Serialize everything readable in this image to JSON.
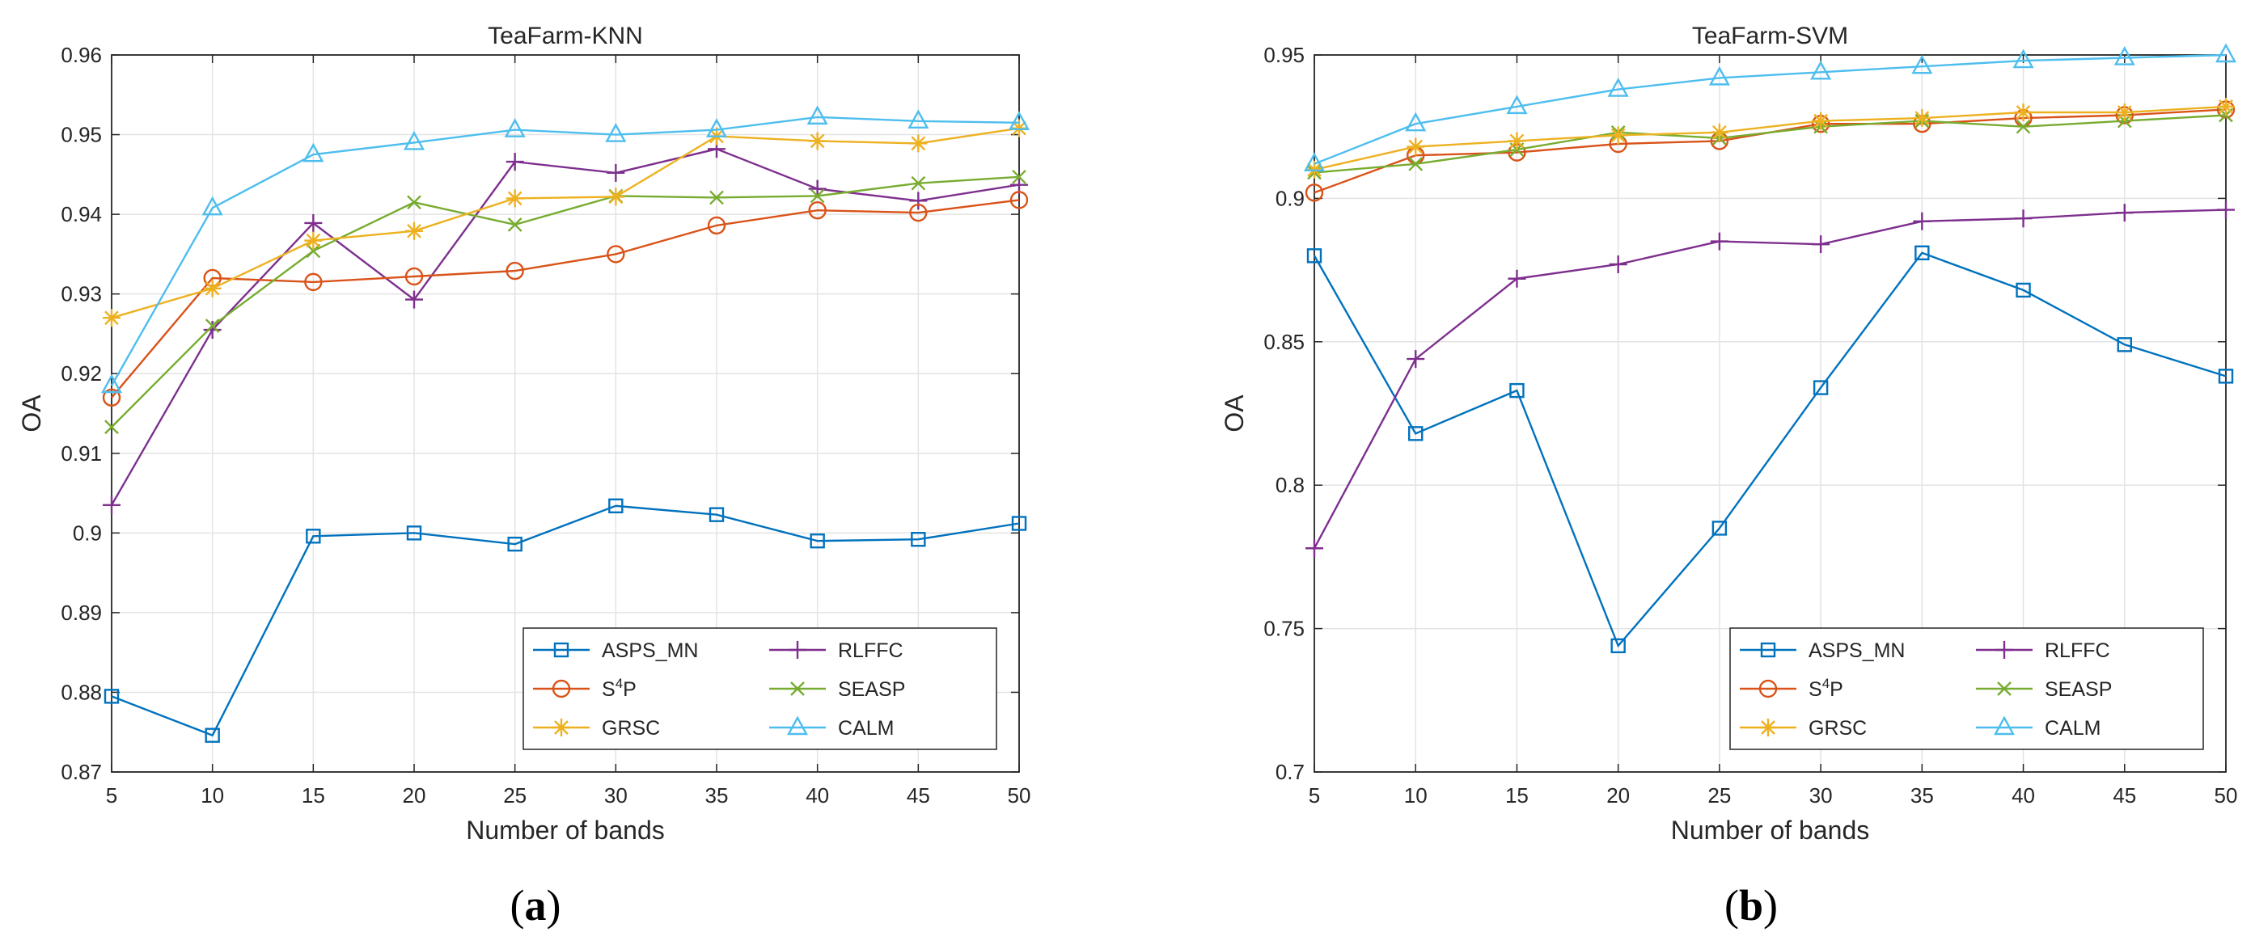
{
  "colors": {
    "ASPS_MN": "#0072BD",
    "S4P": "#D95319",
    "GRSC": "#EDB120",
    "RLFFC": "#7E2F8E",
    "SEASP": "#77AC30",
    "CALM": "#4DBEEE"
  },
  "chart_data": [
    {
      "type": "line",
      "title": "TeaFarm-KNN",
      "xlabel": "Number of bands",
      "ylabel": "OA",
      "caption": "a",
      "x": [
        5,
        10,
        15,
        20,
        25,
        30,
        35,
        40,
        45,
        50
      ],
      "xlim": [
        5,
        50
      ],
      "ylim": [
        0.87,
        0.96
      ],
      "xticks": [
        "5",
        "10",
        "15",
        "20",
        "25",
        "30",
        "35",
        "40",
        "45",
        "50"
      ],
      "yticks": [
        "0.87",
        "0.88",
        "0.89",
        "0.9",
        "0.91",
        "0.92",
        "0.93",
        "0.94",
        "0.95",
        "0.96"
      ],
      "grid": true,
      "legend_position": "bottom-right",
      "series": [
        {
          "name": "ASPS_MN",
          "color_key": "ASPS_MN",
          "marker": "square",
          "values": [
            0.8795,
            0.8746,
            0.8996,
            0.9,
            0.8986,
            0.9034,
            0.9023,
            0.899,
            0.8992,
            0.9012
          ]
        },
        {
          "name": "RLFFC",
          "color_key": "RLFFC",
          "marker": "plus",
          "values": [
            0.9035,
            0.9255,
            0.9389,
            0.9293,
            0.9466,
            0.9452,
            0.9482,
            0.9432,
            0.9417,
            0.9437
          ]
        },
        {
          "name_parts": [
            "S",
            "4",
            "P"
          ],
          "color_key": "S4P",
          "marker": "circle",
          "values": [
            0.917,
            0.932,
            0.9315,
            0.9322,
            0.9329,
            0.935,
            0.9386,
            0.9405,
            0.9402,
            0.9418
          ]
        },
        {
          "name": "SEASP",
          "color_key": "SEASP",
          "marker": "x",
          "values": [
            0.9133,
            0.926,
            0.9354,
            0.9415,
            0.9387,
            0.9423,
            0.9421,
            0.9423,
            0.9439,
            0.9447
          ]
        },
        {
          "name": "GRSC",
          "color_key": "GRSC",
          "marker": "star",
          "values": [
            0.927,
            0.9307,
            0.9367,
            0.9379,
            0.942,
            0.9422,
            0.9498,
            0.9492,
            0.9489,
            0.9508
          ]
        },
        {
          "name": "CALM",
          "color_key": "CALM",
          "marker": "triangle",
          "values": [
            0.9185,
            0.9408,
            0.9475,
            0.949,
            0.9506,
            0.95,
            0.9506,
            0.9522,
            0.9517,
            0.9515
          ]
        }
      ]
    },
    {
      "type": "line",
      "title": "TeaFarm-SVM",
      "xlabel": "Number of bands",
      "ylabel": "OA",
      "caption": "b",
      "x": [
        5,
        10,
        15,
        20,
        25,
        30,
        35,
        40,
        45,
        50
      ],
      "xlim": [
        5,
        50
      ],
      "ylim": [
        0.7,
        0.95
      ],
      "xticks": [
        "5",
        "10",
        "15",
        "20",
        "25",
        "30",
        "35",
        "40",
        "45",
        "50"
      ],
      "yticks": [
        "0.7",
        "0.75",
        "0.8",
        "0.85",
        "0.9",
        "0.95"
      ],
      "grid": true,
      "legend_position": "bottom-right",
      "series": [
        {
          "name": "ASPS_MN",
          "color_key": "ASPS_MN",
          "marker": "square",
          "values": [
            0.88,
            0.818,
            0.833,
            0.744,
            0.785,
            0.834,
            0.881,
            0.868,
            0.849,
            0.838
          ]
        },
        {
          "name": "RLFFC",
          "color_key": "RLFFC",
          "marker": "plus",
          "values": [
            0.778,
            0.844,
            0.872,
            0.877,
            0.885,
            0.884,
            0.892,
            0.893,
            0.895,
            0.896
          ]
        },
        {
          "name_parts": [
            "S",
            "4",
            "P"
          ],
          "color_key": "S4P",
          "marker": "circle",
          "values": [
            0.902,
            0.915,
            0.916,
            0.919,
            0.92,
            0.926,
            0.926,
            0.928,
            0.929,
            0.931
          ]
        },
        {
          "name": "SEASP",
          "color_key": "SEASP",
          "marker": "x",
          "values": [
            0.909,
            0.912,
            0.917,
            0.923,
            0.921,
            0.925,
            0.927,
            0.925,
            0.927,
            0.929
          ]
        },
        {
          "name": "GRSC",
          "color_key": "GRSC",
          "marker": "star",
          "values": [
            0.91,
            0.918,
            0.92,
            0.922,
            0.923,
            0.927,
            0.928,
            0.93,
            0.93,
            0.932
          ]
        },
        {
          "name": "CALM",
          "color_key": "CALM",
          "marker": "triangle",
          "values": [
            0.912,
            0.926,
            0.932,
            0.938,
            0.942,
            0.944,
            0.946,
            0.948,
            0.949,
            0.95
          ]
        }
      ]
    }
  ]
}
